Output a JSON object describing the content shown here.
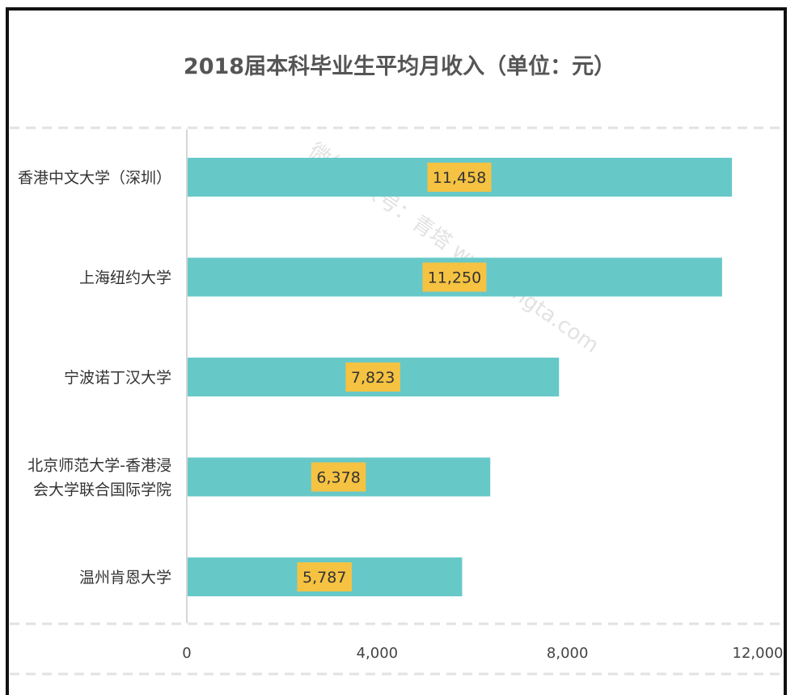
{
  "chart_data": {
    "type": "bar",
    "orientation": "horizontal",
    "title": "2018届本科毕业生平均月收入（单位：元）",
    "watermark": "微信公众号：青塔 www.cingta.com",
    "categories": [
      [
        "香港中文大学（深圳）"
      ],
      [
        "上海纽约大学"
      ],
      [
        "宁波诺丁汉大学"
      ],
      [
        "北京师范大学-香港浸",
        "会大学联合国际学院"
      ],
      [
        "温州肯恩大学"
      ]
    ],
    "values": [
      11458,
      11250,
      7823,
      6378,
      5787
    ],
    "value_labels": [
      "11,458",
      "11,250",
      "7,823",
      "6,378",
      "5,787"
    ],
    "xlim": [
      0,
      12000
    ],
    "xticks": [
      {
        "value": 0,
        "label": "0"
      },
      {
        "value": 4000,
        "label": "4,000"
      },
      {
        "value": 8000,
        "label": "8,000"
      },
      {
        "value": 12000,
        "label": "12,000"
      }
    ],
    "grid": false,
    "colors": {
      "bar": "#67c8c8",
      "label_bg": "#f5c242",
      "axis": "#d6d6d6",
      "dash": "#e2e2e2"
    }
  }
}
